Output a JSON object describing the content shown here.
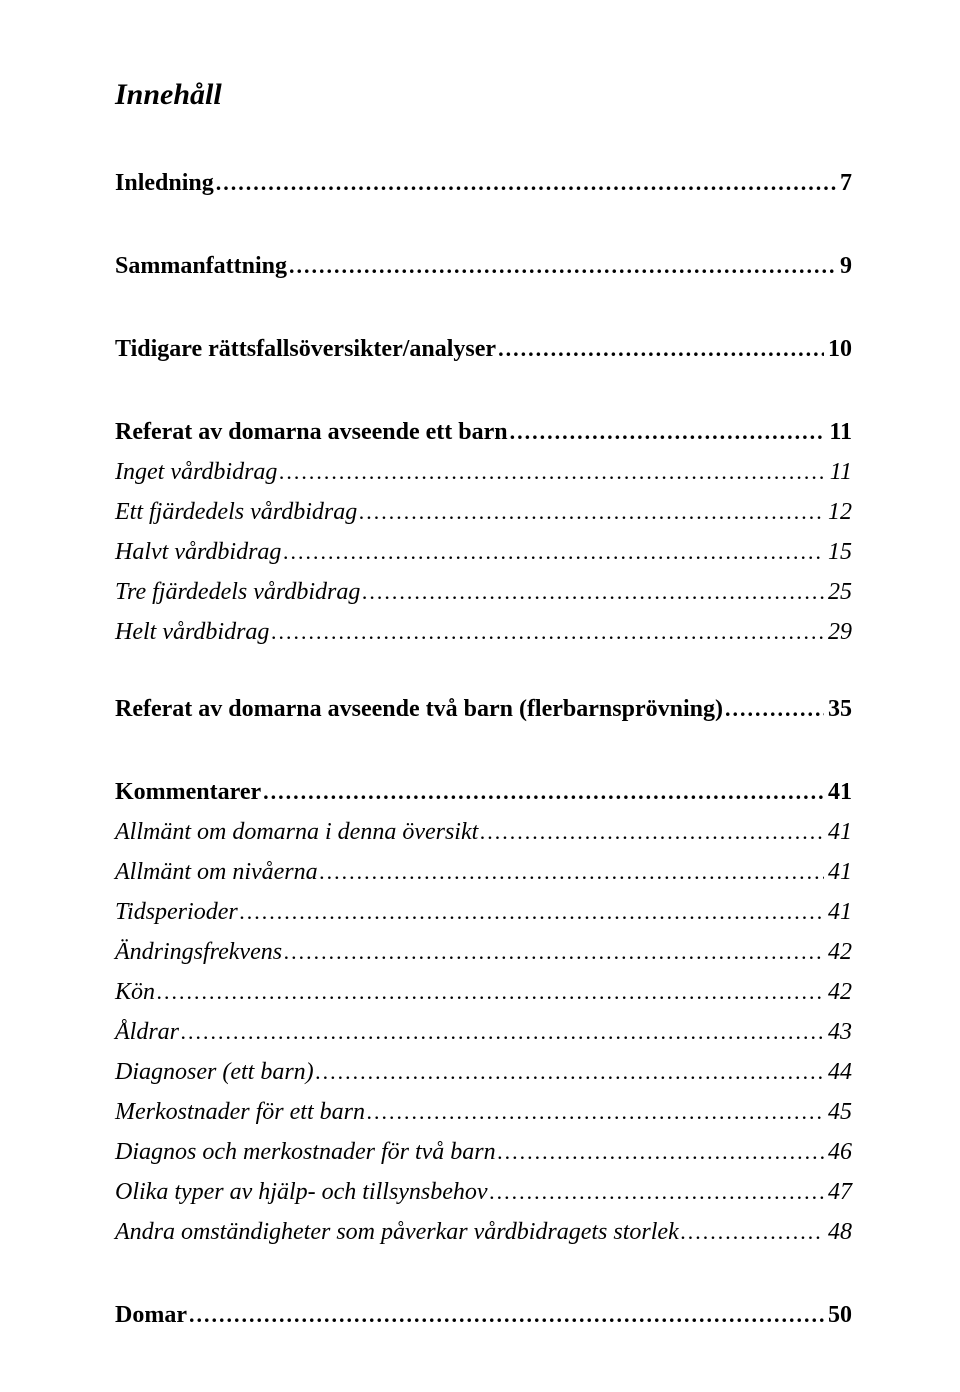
{
  "title": "Innehåll",
  "toc": [
    {
      "label": "Inledning",
      "page": "7",
      "level": "section",
      "gap": "gap-section-first"
    },
    {
      "label": "Sammanfattning",
      "page": "9",
      "level": "section",
      "gap": "gap-section"
    },
    {
      "label": "Tidigare rättsfallsöversikter/analyser",
      "page": "10",
      "level": "section",
      "gap": "gap-section"
    },
    {
      "label": "Referat av domarna avseende ett barn",
      "page": "11",
      "level": "section",
      "gap": "gap-section"
    },
    {
      "label": "Inget vårdbidrag",
      "page": "11",
      "level": "sub",
      "gap": "gap-sub"
    },
    {
      "label": "Ett fjärdedels vårdbidrag",
      "page": "12",
      "level": "sub",
      "gap": "gap-sub"
    },
    {
      "label": "Halvt vårdbidrag",
      "page": "15",
      "level": "sub",
      "gap": "gap-sub"
    },
    {
      "label": "Tre fjärdedels vårdbidrag",
      "page": "25",
      "level": "sub",
      "gap": "gap-sub"
    },
    {
      "label": "Helt vårdbidrag",
      "page": "29",
      "level": "sub",
      "gap": "gap-sub"
    },
    {
      "label": "Referat av domarna avseende två barn (flerbarnsprövning)",
      "page": "35",
      "level": "section",
      "gap": "gap-section-tight"
    },
    {
      "label": "Kommentarer",
      "page": "41",
      "level": "section",
      "gap": "gap-section"
    },
    {
      "label": "Allmänt om domarna i denna översikt",
      "page": "41",
      "level": "sub",
      "gap": "gap-sub"
    },
    {
      "label": "Allmänt om nivåerna",
      "page": "41",
      "level": "sub",
      "gap": "gap-sub"
    },
    {
      "label": "Tidsperioder",
      "page": "41",
      "level": "sub",
      "gap": "gap-sub"
    },
    {
      "label": "Ändringsfrekvens",
      "page": "42",
      "level": "sub",
      "gap": "gap-sub"
    },
    {
      "label": "Kön",
      "page": "42",
      "level": "sub",
      "gap": "gap-sub"
    },
    {
      "label": "Åldrar",
      "page": "43",
      "level": "sub",
      "gap": "gap-sub"
    },
    {
      "label": "Diagnoser (ett barn)",
      "page": "44",
      "level": "sub",
      "gap": "gap-sub"
    },
    {
      "label": "Merkostnader för ett barn",
      "page": "45",
      "level": "sub",
      "gap": "gap-sub"
    },
    {
      "label": "Diagnos och merkostnader för två barn",
      "page": "46",
      "level": "sub",
      "gap": "gap-sub"
    },
    {
      "label": "Olika typer av hjälp- och tillsynsbehov",
      "page": "47",
      "level": "sub",
      "gap": "gap-sub"
    },
    {
      "label": "Andra omständigheter som påverkar vårdbidragets storlek",
      "page": "48",
      "level": "sub",
      "gap": "gap-sub"
    },
    {
      "label": "Domar",
      "page": "50",
      "level": "section",
      "gap": "gap-section"
    }
  ]
}
